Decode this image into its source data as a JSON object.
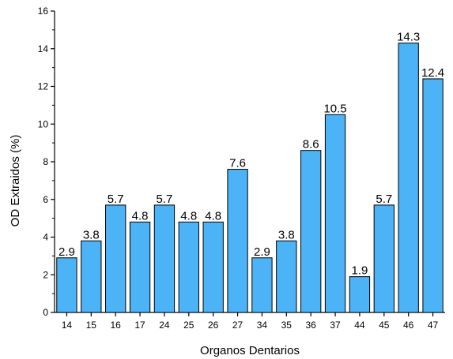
{
  "chart_data": {
    "type": "bar",
    "categories": [
      "14",
      "15",
      "16",
      "17",
      "24",
      "25",
      "26",
      "27",
      "34",
      "35",
      "36",
      "37",
      "44",
      "45",
      "46",
      "47"
    ],
    "values": [
      2.9,
      3.8,
      5.7,
      4.8,
      5.7,
      4.8,
      4.8,
      7.6,
      2.9,
      3.8,
      8.6,
      10.5,
      1.9,
      5.7,
      14.3,
      12.4
    ],
    "data_labels": [
      "2.9",
      "3.8",
      "5.7",
      "4.8",
      "5.7",
      "4.8",
      "4.8",
      "7.6",
      "2.9",
      "3.8",
      "8.6",
      "10.5",
      "1.9",
      "5.7",
      "14.3",
      "12.4"
    ],
    "xlabel": "Organos Dentarios",
    "ylabel": "OD Extraidos (%)",
    "ylim": [
      0,
      16
    ],
    "yticks": [
      0,
      2,
      4,
      6,
      8,
      10,
      12,
      14,
      16
    ],
    "grid": false,
    "legend": "none",
    "colors": {
      "bar_fill": "#4db3f7",
      "bar_stroke": "#000000",
      "axis": "#000000"
    }
  }
}
